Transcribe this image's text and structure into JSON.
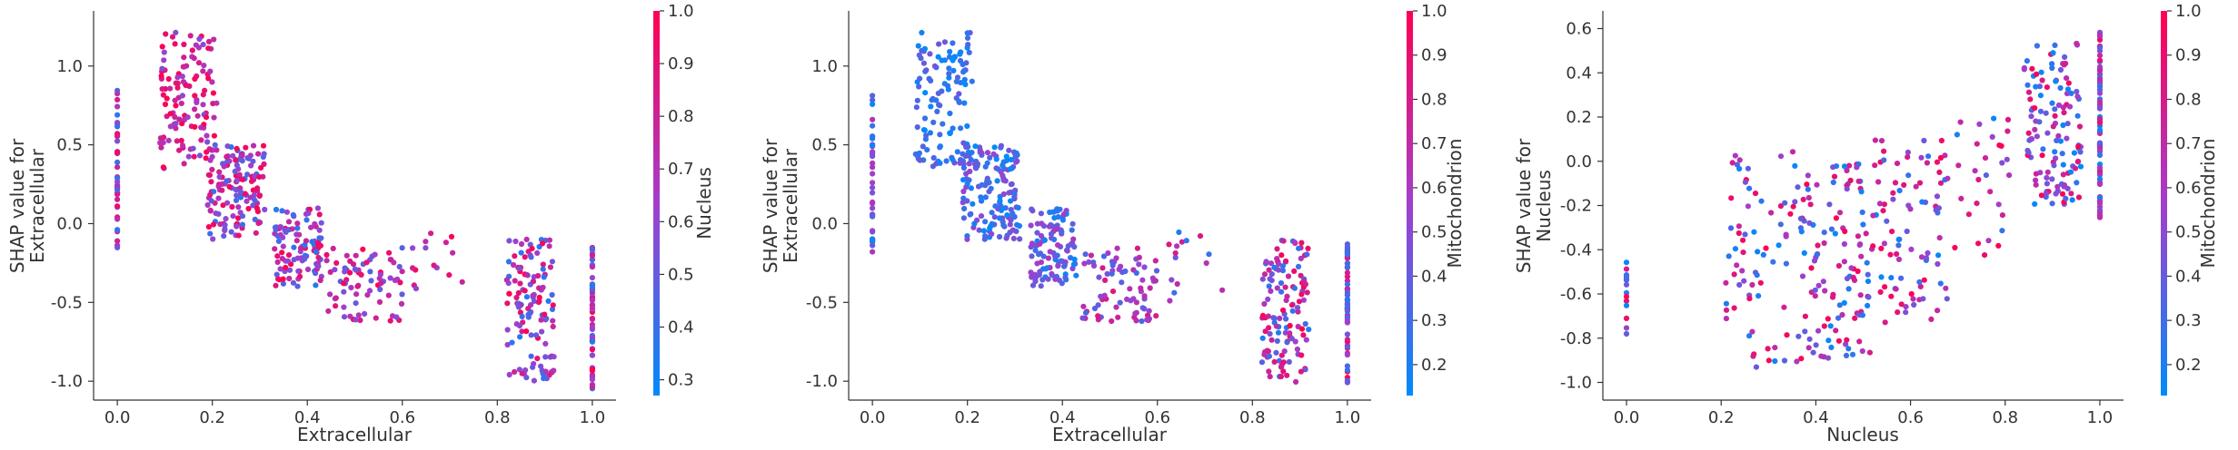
{
  "figure": {
    "panels": [
      {
        "id": "panel1",
        "seed": 11,
        "kind": "ext"
      },
      {
        "id": "panel2",
        "seed": 23,
        "kind": "ext"
      },
      {
        "id": "panel3",
        "seed": 37,
        "kind": "nuc"
      }
    ]
  },
  "chart_data": [
    {
      "type": "scatter",
      "title": "",
      "xlabel": "Extracellular",
      "ylabel_lines": [
        "SHAP value for",
        "Extracellular"
      ],
      "colorbar_label": "Nucleus",
      "xlim": [
        -0.05,
        1.05
      ],
      "ylim": [
        -1.12,
        1.35
      ],
      "x_ticks": [
        0.0,
        0.2,
        0.4,
        0.6,
        0.8,
        1.0
      ],
      "x_tick_labels": [
        "0.0",
        "0.2",
        "0.4",
        "0.6",
        "0.8",
        "1.0"
      ],
      "y_ticks": [
        1.0,
        0.5,
        0.0,
        -0.5,
        -1.0
      ],
      "y_tick_labels": [
        "1.0",
        "0.5",
        "0.0",
        "-0.5",
        "-1.0"
      ],
      "colorbar_range": [
        0.27,
        1.0
      ],
      "colorbar_ticks": [
        1.0,
        0.9,
        0.8,
        0.7,
        0.6,
        0.5,
        0.4,
        0.3
      ],
      "colorbar_tick_labels": [
        "1.0",
        "0.9",
        "0.8",
        "0.7",
        "0.6",
        "0.5",
        "0.4",
        "0.3"
      ],
      "colormap": [
        "#008bfb",
        "#ff0052"
      ],
      "clusters": [
        {
          "x": 0.0,
          "x_spread": 0.0,
          "y_min": -0.18,
          "y_max": 0.85,
          "n": 40,
          "c_lo": 0.35,
          "c_hi": 1.0
        },
        {
          "x": 0.15,
          "x_spread": 0.06,
          "y_min": 0.35,
          "y_max": 1.22,
          "n": 120,
          "c_lo": 0.55,
          "c_hi": 1.0
        },
        {
          "x": 0.25,
          "x_spread": 0.06,
          "y_min": -0.1,
          "y_max": 0.5,
          "n": 150,
          "c_lo": 0.35,
          "c_hi": 1.0
        },
        {
          "x": 0.38,
          "x_spread": 0.05,
          "y_min": -0.4,
          "y_max": 0.1,
          "n": 110,
          "c_lo": 0.35,
          "c_hi": 1.0
        },
        {
          "x": 0.52,
          "x_spread": 0.08,
          "y_min": -0.62,
          "y_max": -0.15,
          "n": 80,
          "c_lo": 0.45,
          "c_hi": 1.0
        },
        {
          "x": 0.68,
          "x_spread": 0.06,
          "y_min": -0.5,
          "y_max": -0.05,
          "n": 15,
          "c_lo": 0.3,
          "c_hi": 1.0
        },
        {
          "x": 0.87,
          "x_spread": 0.05,
          "y_min": -1.02,
          "y_max": -0.1,
          "n": 130,
          "c_lo": 0.35,
          "c_hi": 1.0
        },
        {
          "x": 1.0,
          "x_spread": 0.0,
          "y_min": -1.05,
          "y_max": -0.1,
          "n": 60,
          "c_lo": 0.3,
          "c_hi": 1.0
        }
      ]
    },
    {
      "type": "scatter",
      "title": "",
      "xlabel": "Extracellular",
      "ylabel_lines": [
        "SHAP value for",
        "Extracellular"
      ],
      "colorbar_label": "Mitochondrion",
      "xlim": [
        -0.05,
        1.05
      ],
      "ylim": [
        -1.12,
        1.35
      ],
      "x_ticks": [
        0.0,
        0.2,
        0.4,
        0.6,
        0.8,
        1.0
      ],
      "x_tick_labels": [
        "0.0",
        "0.2",
        "0.4",
        "0.6",
        "0.8",
        "1.0"
      ],
      "y_ticks": [
        1.0,
        0.5,
        0.0,
        -0.5,
        -1.0
      ],
      "y_tick_labels": [
        "1.0",
        "0.5",
        "0.0",
        "-0.5",
        "-1.0"
      ],
      "colorbar_range": [
        0.13,
        1.0
      ],
      "colorbar_ticks": [
        1.0,
        0.9,
        0.8,
        0.7,
        0.6,
        0.5,
        0.4,
        0.3,
        0.2
      ],
      "colorbar_tick_labels": [
        "1.0",
        "0.9",
        "0.8",
        "0.7",
        "0.6",
        "0.5",
        "0.4",
        "0.3",
        "0.2"
      ],
      "colormap": [
        "#008bfb",
        "#ff0052"
      ],
      "clusters": [
        {
          "x": 0.0,
          "x_spread": 0.0,
          "y_min": -0.18,
          "y_max": 0.85,
          "n": 40,
          "c_lo": 0.13,
          "c_hi": 0.7
        },
        {
          "x": 0.15,
          "x_spread": 0.06,
          "y_min": 0.35,
          "y_max": 1.22,
          "n": 120,
          "c_lo": 0.13,
          "c_hi": 0.45
        },
        {
          "x": 0.25,
          "x_spread": 0.06,
          "y_min": -0.1,
          "y_max": 0.5,
          "n": 150,
          "c_lo": 0.13,
          "c_hi": 0.55
        },
        {
          "x": 0.38,
          "x_spread": 0.05,
          "y_min": -0.4,
          "y_max": 0.1,
          "n": 110,
          "c_lo": 0.13,
          "c_hi": 0.65
        },
        {
          "x": 0.52,
          "x_spread": 0.08,
          "y_min": -0.62,
          "y_max": -0.15,
          "n": 80,
          "c_lo": 0.3,
          "c_hi": 0.85
        },
        {
          "x": 0.68,
          "x_spread": 0.06,
          "y_min": -0.5,
          "y_max": -0.05,
          "n": 15,
          "c_lo": 0.2,
          "c_hi": 0.9
        },
        {
          "x": 0.87,
          "x_spread": 0.05,
          "y_min": -1.02,
          "y_max": -0.1,
          "n": 130,
          "c_lo": 0.2,
          "c_hi": 1.0
        },
        {
          "x": 1.0,
          "x_spread": 0.0,
          "y_min": -1.05,
          "y_max": -0.1,
          "n": 60,
          "c_lo": 0.2,
          "c_hi": 1.0
        }
      ]
    },
    {
      "type": "scatter",
      "title": "",
      "xlabel": "Nucleus",
      "ylabel_lines": [
        "SHAP value for",
        "Nucleus"
      ],
      "colorbar_label": "Mitochondrion",
      "xlim": [
        -0.05,
        1.05
      ],
      "ylim": [
        -1.08,
        0.68
      ],
      "x_ticks": [
        0.0,
        0.2,
        0.4,
        0.6,
        0.8,
        1.0
      ],
      "x_tick_labels": [
        "0.0",
        "0.2",
        "0.4",
        "0.6",
        "0.8",
        "1.0"
      ],
      "y_ticks": [
        0.6,
        0.4,
        0.2,
        0.0,
        -0.2,
        -0.4,
        -0.6,
        -0.8,
        -1.0
      ],
      "y_tick_labels": [
        "0.6",
        "0.4",
        "0.2",
        "0.0",
        "-0.2",
        "-0.4",
        "-0.6",
        "-0.8",
        "-1.0"
      ],
      "colorbar_range": [
        0.13,
        1.0
      ],
      "colorbar_ticks": [
        1.0,
        0.9,
        0.8,
        0.7,
        0.6,
        0.5,
        0.4,
        0.3,
        0.2
      ],
      "colorbar_tick_labels": [
        "1.0",
        "0.9",
        "0.8",
        "0.7",
        "0.6",
        "0.5",
        "0.4",
        "0.3",
        "0.2"
      ],
      "colormap": [
        "#008bfb",
        "#ff0052"
      ],
      "clusters": [
        {
          "x": 0.0,
          "x_spread": 0.0,
          "y_min": -0.8,
          "y_max": -0.35,
          "n": 14,
          "c_lo": 0.15,
          "c_hi": 1.0
        },
        {
          "x": 0.28,
          "x_spread": 0.08,
          "y_min": -0.95,
          "y_max": 0.05,
          "n": 70,
          "c_lo": 0.13,
          "c_hi": 1.0
        },
        {
          "x": 0.44,
          "x_spread": 0.08,
          "y_min": -0.9,
          "y_max": 0.0,
          "n": 120,
          "c_lo": 0.13,
          "c_hi": 1.0
        },
        {
          "x": 0.6,
          "x_spread": 0.08,
          "y_min": -0.75,
          "y_max": 0.1,
          "n": 90,
          "c_lo": 0.13,
          "c_hi": 1.0
        },
        {
          "x": 0.75,
          "x_spread": 0.06,
          "y_min": -0.45,
          "y_max": 0.25,
          "n": 30,
          "c_lo": 0.13,
          "c_hi": 1.0
        },
        {
          "x": 0.9,
          "x_spread": 0.06,
          "y_min": -0.2,
          "y_max": 0.55,
          "n": 130,
          "c_lo": 0.13,
          "c_hi": 1.0
        },
        {
          "x": 1.0,
          "x_spread": 0.0,
          "y_min": -0.3,
          "y_max": 0.6,
          "n": 90,
          "c_lo": 0.13,
          "c_hi": 0.95
        }
      ]
    }
  ]
}
